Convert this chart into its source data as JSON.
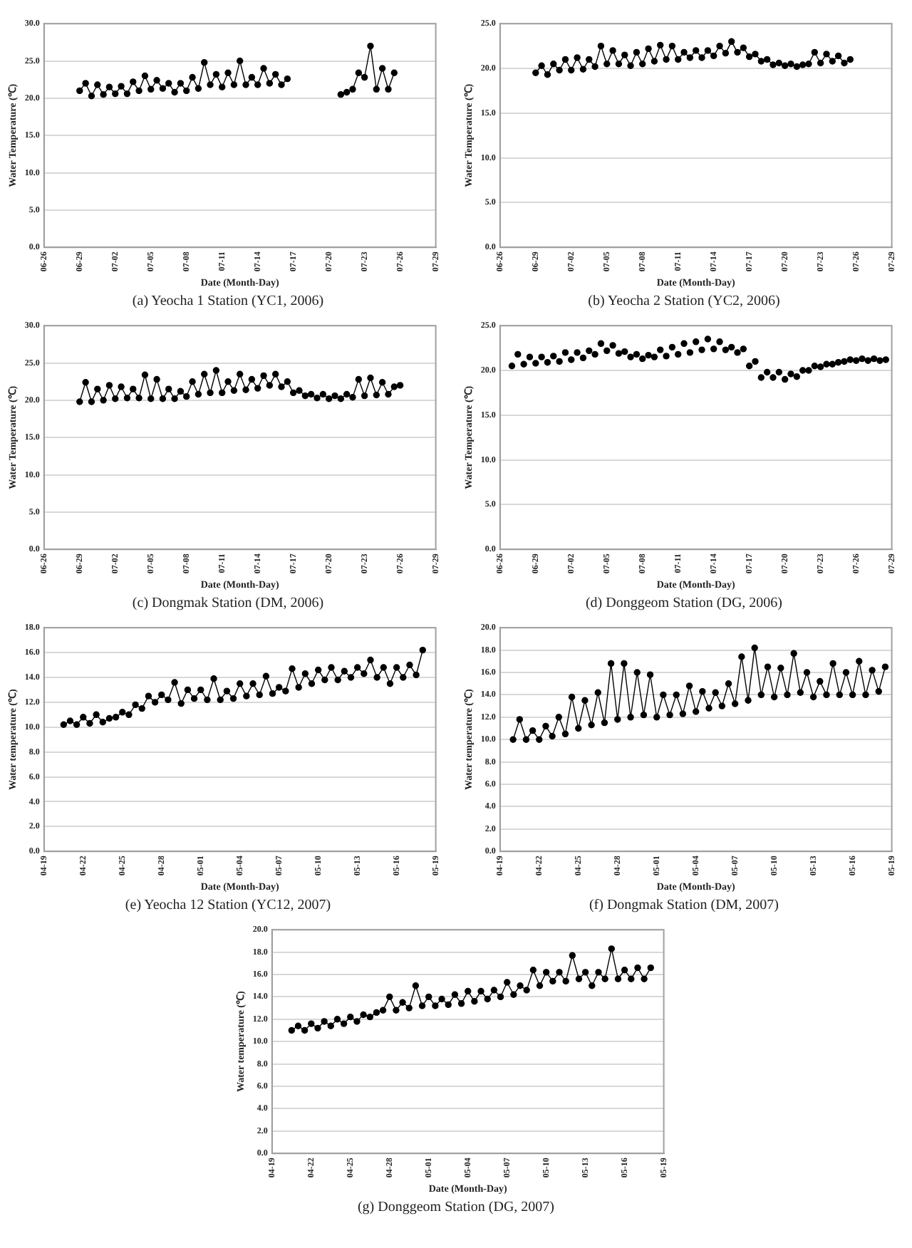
{
  "chart_data": [
    {
      "type": "line",
      "title": "(a) Yeocha 1 Station (YC1, 2006)",
      "xlabel": "Date (Month-Day)",
      "ylabel": "Water Temperature (℃)",
      "color": "#000000",
      "marker": "circle",
      "grid": "y",
      "xlim": [
        "2006-06-26",
        "2006-07-29"
      ],
      "xticks": [
        {
          "value": "2006-06-26",
          "label": "06-26"
        },
        {
          "value": "2006-06-29",
          "label": "06-29"
        },
        {
          "value": "2006-07-02",
          "label": "07-02"
        },
        {
          "value": "2006-07-05",
          "label": "07-05"
        },
        {
          "value": "2006-07-08",
          "label": "07-08"
        },
        {
          "value": "2006-07-11",
          "label": "07-11"
        },
        {
          "value": "2006-07-14",
          "label": "07-14"
        },
        {
          "value": "2006-07-17",
          "label": "07-17"
        },
        {
          "value": "2006-07-20",
          "label": "07-20"
        },
        {
          "value": "2006-07-23",
          "label": "07-23"
        },
        {
          "value": "2006-07-26",
          "label": "07-26"
        },
        {
          "value": "2006-07-29",
          "label": "07-29"
        }
      ],
      "ylim": [
        0,
        30
      ],
      "yticks": [
        {
          "value": 0,
          "label": "0.0"
        },
        {
          "value": 5,
          "label": "5.0"
        },
        {
          "value": 10,
          "label": "10.0"
        },
        {
          "value": 15,
          "label": "15.0"
        },
        {
          "value": 20,
          "label": "20.0"
        },
        {
          "value": 25,
          "label": "25.0"
        },
        {
          "value": 30,
          "label": "30.0"
        }
      ],
      "x": [
        "2006-06-29T00:00",
        "2006-06-29T12:00",
        "2006-06-30T00:00",
        "2006-06-30T12:00",
        "2006-07-01T00:00",
        "2006-07-01T12:00",
        "2006-07-02T00:00",
        "2006-07-02T12:00",
        "2006-07-03T00:00",
        "2006-07-03T12:00",
        "2006-07-04T00:00",
        "2006-07-04T12:00",
        "2006-07-05T00:00",
        "2006-07-05T12:00",
        "2006-07-06T00:00",
        "2006-07-06T12:00",
        "2006-07-07T00:00",
        "2006-07-07T12:00",
        "2006-07-08T00:00",
        "2006-07-08T12:00",
        "2006-07-09T00:00",
        "2006-07-09T12:00",
        "2006-07-10T00:00",
        "2006-07-10T12:00",
        "2006-07-11T00:00",
        "2006-07-11T12:00",
        "2006-07-12T00:00",
        "2006-07-12T12:00",
        "2006-07-13T00:00",
        "2006-07-13T12:00",
        "2006-07-14T00:00",
        "2006-07-14T12:00",
        "2006-07-15T00:00",
        "2006-07-15T12:00",
        "2006-07-16T00:00",
        "2006-07-16T12:00",
        "2006-07-18T00:00",
        "2006-07-21T00:00",
        "2006-07-21T12:00",
        "2006-07-22T00:00",
        "2006-07-22T12:00",
        "2006-07-23T00:00",
        "2006-07-23T12:00",
        "2006-07-24T00:00",
        "2006-07-24T12:00",
        "2006-07-25T00:00",
        "2006-07-25T12:00"
      ],
      "values": [
        21.0,
        22.0,
        20.3,
        21.8,
        20.5,
        21.5,
        20.6,
        21.6,
        20.6,
        22.2,
        21.0,
        23.0,
        21.2,
        22.4,
        21.3,
        22.0,
        20.8,
        22.0,
        21.0,
        22.8,
        21.3,
        24.8,
        21.8,
        23.2,
        21.5,
        23.4,
        21.8,
        25.0,
        21.8,
        22.8,
        21.8,
        24.0,
        22.0,
        23.2,
        21.8,
        22.6,
        null,
        20.5,
        20.8,
        21.2,
        23.4,
        22.8,
        27.0,
        21.2,
        24.0,
        21.2,
        23.4
      ]
    },
    {
      "type": "line",
      "title": "(b) Yeocha 2 Station (YC2, 2006)",
      "xlabel": "Date (Month-Day)",
      "ylabel": "Water Temperature (℃)",
      "color": "#000000",
      "marker": "circle",
      "grid": "y",
      "xlim": [
        "2006-06-26",
        "2006-07-29"
      ],
      "xticks": [
        {
          "value": "2006-06-26",
          "label": "06-26"
        },
        {
          "value": "2006-06-29",
          "label": "06-29"
        },
        {
          "value": "2006-07-02",
          "label": "07-02"
        },
        {
          "value": "2006-07-05",
          "label": "07-05"
        },
        {
          "value": "2006-07-08",
          "label": "07-08"
        },
        {
          "value": "2006-07-11",
          "label": "07-11"
        },
        {
          "value": "2006-07-14",
          "label": "07-14"
        },
        {
          "value": "2006-07-17",
          "label": "07-17"
        },
        {
          "value": "2006-07-20",
          "label": "07-20"
        },
        {
          "value": "2006-07-23",
          "label": "07-23"
        },
        {
          "value": "2006-07-26",
          "label": "07-26"
        },
        {
          "value": "2006-07-29",
          "label": "07-29"
        }
      ],
      "ylim": [
        0,
        25
      ],
      "yticks": [
        {
          "value": 0,
          "label": "0.0"
        },
        {
          "value": 5,
          "label": "5.0"
        },
        {
          "value": 10,
          "label": "10.0"
        },
        {
          "value": 15,
          "label": "15.0"
        },
        {
          "value": 20,
          "label": "20.0"
        },
        {
          "value": 25,
          "label": "25.0"
        }
      ],
      "x": [
        "2006-06-29T00:00",
        "2006-06-29T12:00",
        "2006-06-30T00:00",
        "2006-06-30T12:00",
        "2006-07-01T00:00",
        "2006-07-01T12:00",
        "2006-07-02T00:00",
        "2006-07-02T12:00",
        "2006-07-03T00:00",
        "2006-07-03T12:00",
        "2006-07-04T00:00",
        "2006-07-04T12:00",
        "2006-07-05T00:00",
        "2006-07-05T12:00",
        "2006-07-06T00:00",
        "2006-07-06T12:00",
        "2006-07-07T00:00",
        "2006-07-07T12:00",
        "2006-07-08T00:00",
        "2006-07-08T12:00",
        "2006-07-09T00:00",
        "2006-07-09T12:00",
        "2006-07-10T00:00",
        "2006-07-10T12:00",
        "2006-07-11T00:00",
        "2006-07-11T12:00",
        "2006-07-12T00:00",
        "2006-07-12T12:00",
        "2006-07-13T00:00",
        "2006-07-13T12:00",
        "2006-07-14T00:00",
        "2006-07-14T12:00",
        "2006-07-15T00:00",
        "2006-07-15T12:00",
        "2006-07-16T00:00",
        "2006-07-16T12:00",
        "2006-07-17T00:00",
        "2006-07-17T12:00",
        "2006-07-18T00:00",
        "2006-07-18T12:00",
        "2006-07-19T00:00",
        "2006-07-19T12:00",
        "2006-07-20T00:00",
        "2006-07-20T12:00",
        "2006-07-21T00:00",
        "2006-07-21T12:00",
        "2006-07-22T00:00",
        "2006-07-22T12:00",
        "2006-07-23T00:00",
        "2006-07-23T12:00",
        "2006-07-24T00:00",
        "2006-07-24T12:00",
        "2006-07-25T00:00",
        "2006-07-25T12:00"
      ],
      "values": [
        19.5,
        20.3,
        19.3,
        20.5,
        19.8,
        21.0,
        19.8,
        21.2,
        19.9,
        21.0,
        20.2,
        22.5,
        20.5,
        22.0,
        20.5,
        21.5,
        20.3,
        21.8,
        20.5,
        22.2,
        20.8,
        22.6,
        21.0,
        22.5,
        21.0,
        21.8,
        21.2,
        22.0,
        21.2,
        22.0,
        21.4,
        22.5,
        21.7,
        23.0,
        21.8,
        22.3,
        21.3,
        21.6,
        20.8,
        21.0,
        20.4,
        20.6,
        20.3,
        20.5,
        20.2,
        20.4,
        20.5,
        21.8,
        20.6,
        21.6,
        20.8,
        21.4,
        20.6,
        21.0
      ]
    },
    {
      "type": "line",
      "title": "(c) Dongmak Station (DM, 2006)",
      "xlabel": "Date (Month-Day)",
      "ylabel": "Water Temperature (℃)",
      "color": "#000000",
      "marker": "circle",
      "grid": "y",
      "xlim": [
        "2006-06-26",
        "2006-07-29"
      ],
      "xticks": [
        {
          "value": "2006-06-26",
          "label": "06-26"
        },
        {
          "value": "2006-06-29",
          "label": "06-29"
        },
        {
          "value": "2006-07-02",
          "label": "07-02"
        },
        {
          "value": "2006-07-05",
          "label": "07-05"
        },
        {
          "value": "2006-07-08",
          "label": "07-08"
        },
        {
          "value": "2006-07-11",
          "label": "07-11"
        },
        {
          "value": "2006-07-14",
          "label": "07-14"
        },
        {
          "value": "2006-07-17",
          "label": "07-17"
        },
        {
          "value": "2006-07-20",
          "label": "07-20"
        },
        {
          "value": "2006-07-23",
          "label": "07-23"
        },
        {
          "value": "2006-07-26",
          "label": "07-26"
        },
        {
          "value": "2006-07-29",
          "label": "07-29"
        }
      ],
      "ylim": [
        0,
        30
      ],
      "yticks": [
        {
          "value": 0,
          "label": "0.0"
        },
        {
          "value": 5,
          "label": "5.0"
        },
        {
          "value": 10,
          "label": "10.0"
        },
        {
          "value": 15,
          "label": "15.0"
        },
        {
          "value": 20,
          "label": "20.0"
        },
        {
          "value": 25,
          "label": "25.0"
        },
        {
          "value": 30,
          "label": "30.0"
        }
      ],
      "x": [
        "2006-06-29T00:00",
        "2006-06-29T12:00",
        "2006-06-30T00:00",
        "2006-06-30T12:00",
        "2006-07-01T00:00",
        "2006-07-01T12:00",
        "2006-07-02T00:00",
        "2006-07-02T12:00",
        "2006-07-03T00:00",
        "2006-07-03T12:00",
        "2006-07-04T00:00",
        "2006-07-04T12:00",
        "2006-07-05T00:00",
        "2006-07-05T12:00",
        "2006-07-06T00:00",
        "2006-07-06T12:00",
        "2006-07-07T00:00",
        "2006-07-07T12:00",
        "2006-07-08T00:00",
        "2006-07-08T12:00",
        "2006-07-09T00:00",
        "2006-07-09T12:00",
        "2006-07-10T00:00",
        "2006-07-10T12:00",
        "2006-07-11T00:00",
        "2006-07-11T12:00",
        "2006-07-12T00:00",
        "2006-07-12T12:00",
        "2006-07-13T00:00",
        "2006-07-13T12:00",
        "2006-07-14T00:00",
        "2006-07-14T12:00",
        "2006-07-15T00:00",
        "2006-07-15T12:00",
        "2006-07-16T00:00",
        "2006-07-16T12:00",
        "2006-07-17T00:00",
        "2006-07-17T12:00",
        "2006-07-18T00:00",
        "2006-07-18T12:00",
        "2006-07-19T00:00",
        "2006-07-19T12:00",
        "2006-07-20T00:00",
        "2006-07-20T12:00",
        "2006-07-21T00:00",
        "2006-07-21T12:00",
        "2006-07-22T00:00",
        "2006-07-22T12:00",
        "2006-07-23T00:00",
        "2006-07-23T12:00",
        "2006-07-24T00:00",
        "2006-07-24T12:00",
        "2006-07-25T00:00",
        "2006-07-25T12:00",
        "2006-07-26T00:00"
      ],
      "values": [
        19.8,
        22.4,
        19.8,
        21.5,
        20.0,
        22.0,
        20.2,
        21.8,
        20.3,
        21.5,
        20.3,
        23.4,
        20.2,
        22.8,
        20.2,
        21.5,
        20.2,
        21.2,
        20.5,
        22.5,
        20.8,
        23.5,
        21.0,
        24.0,
        21.0,
        22.5,
        21.3,
        23.5,
        21.4,
        22.8,
        21.6,
        23.3,
        22.0,
        23.5,
        21.8,
        22.5,
        21.0,
        21.3,
        20.6,
        20.8,
        20.3,
        20.8,
        20.2,
        20.6,
        20.2,
        20.8,
        20.4,
        22.8,
        20.6,
        23.0,
        20.7,
        22.4,
        20.8,
        21.8,
        22.0
      ]
    },
    {
      "type": "scatter",
      "title": "(d) Donggeom Station (DG, 2006)",
      "xlabel": "Date (Month-Day)",
      "ylabel": "Water Temperature (℃)",
      "color": "#000000",
      "marker": "circle",
      "grid": "y",
      "xlim": [
        "2006-06-26",
        "2006-07-29"
      ],
      "xticks": [
        {
          "value": "2006-06-26",
          "label": "06-26"
        },
        {
          "value": "2006-06-29",
          "label": "06-29"
        },
        {
          "value": "2006-07-02",
          "label": "07-02"
        },
        {
          "value": "2006-07-05",
          "label": "07-05"
        },
        {
          "value": "2006-07-08",
          "label": "07-08"
        },
        {
          "value": "2006-07-11",
          "label": "07-11"
        },
        {
          "value": "2006-07-14",
          "label": "07-14"
        },
        {
          "value": "2006-07-17",
          "label": "07-17"
        },
        {
          "value": "2006-07-20",
          "label": "07-20"
        },
        {
          "value": "2006-07-23",
          "label": "07-23"
        },
        {
          "value": "2006-07-26",
          "label": "07-26"
        },
        {
          "value": "2006-07-29",
          "label": "07-29"
        }
      ],
      "ylim": [
        0,
        25
      ],
      "yticks": [
        {
          "value": 0,
          "label": "0.0"
        },
        {
          "value": 5,
          "label": "5.0"
        },
        {
          "value": 10,
          "label": "10.0"
        },
        {
          "value": 15,
          "label": "15.0"
        },
        {
          "value": 20,
          "label": "20.0"
        },
        {
          "value": 25,
          "label": "25.0"
        }
      ],
      "x": [
        "2006-06-27T00:00",
        "2006-06-27T12:00",
        "2006-06-28T00:00",
        "2006-06-28T12:00",
        "2006-06-29T00:00",
        "2006-06-29T12:00",
        "2006-06-30T00:00",
        "2006-06-30T12:00",
        "2006-07-01T00:00",
        "2006-07-01T12:00",
        "2006-07-02T00:00",
        "2006-07-02T12:00",
        "2006-07-03T00:00",
        "2006-07-03T12:00",
        "2006-07-04T00:00",
        "2006-07-04T12:00",
        "2006-07-05T00:00",
        "2006-07-05T12:00",
        "2006-07-06T00:00",
        "2006-07-06T12:00",
        "2006-07-07T00:00",
        "2006-07-07T12:00",
        "2006-07-08T00:00",
        "2006-07-08T12:00",
        "2006-07-09T00:00",
        "2006-07-09T12:00",
        "2006-07-10T00:00",
        "2006-07-10T12:00",
        "2006-07-11T00:00",
        "2006-07-11T12:00",
        "2006-07-12T00:00",
        "2006-07-12T12:00",
        "2006-07-13T00:00",
        "2006-07-13T12:00",
        "2006-07-14T00:00",
        "2006-07-14T12:00",
        "2006-07-15T00:00",
        "2006-07-15T12:00",
        "2006-07-16T00:00",
        "2006-07-16T12:00",
        "2006-07-17T00:00",
        "2006-07-17T12:00",
        "2006-07-18T00:00",
        "2006-07-18T12:00",
        "2006-07-19T00:00",
        "2006-07-19T12:00",
        "2006-07-20T00:00",
        "2006-07-20T12:00",
        "2006-07-21T00:00",
        "2006-07-21T12:00",
        "2006-07-22T00:00",
        "2006-07-22T12:00",
        "2006-07-23T00:00",
        "2006-07-23T12:00",
        "2006-07-24T00:00",
        "2006-07-24T12:00",
        "2006-07-25T00:00",
        "2006-07-25T12:00",
        "2006-07-26T00:00",
        "2006-07-26T12:00",
        "2006-07-27T00:00",
        "2006-07-27T12:00",
        "2006-07-28T00:00",
        "2006-07-28T12:00"
      ],
      "values": [
        20.5,
        21.8,
        20.7,
        21.5,
        20.8,
        21.5,
        20.9,
        21.6,
        21.0,
        22.0,
        21.2,
        22.0,
        21.4,
        22.2,
        21.8,
        23.0,
        22.2,
        22.8,
        21.9,
        22.1,
        21.5,
        21.8,
        21.3,
        21.7,
        21.5,
        22.3,
        21.6,
        22.6,
        21.8,
        23.0,
        22.0,
        23.2,
        22.3,
        23.5,
        22.4,
        23.2,
        22.3,
        22.6,
        22.0,
        22.4,
        20.5,
        21.0,
        19.2,
        19.8,
        19.2,
        19.8,
        19.0,
        19.6,
        19.3,
        20.0,
        20.0,
        20.5,
        20.4,
        20.7,
        20.7,
        20.9,
        21.0,
        21.2,
        21.1,
        21.3,
        21.1,
        21.3,
        21.1,
        21.2
      ]
    },
    {
      "type": "line",
      "title": "(e) Yeocha 12 Station (YC12, 2007)",
      "xlabel": "Date (Month-Day)",
      "ylabel": "Water temperature (℃)",
      "color": "#000000",
      "marker": "circle",
      "grid": "y",
      "xlim": [
        "2007-04-19",
        "2007-05-19"
      ],
      "xticks": [
        {
          "value": "2007-04-19",
          "label": "04-19"
        },
        {
          "value": "2007-04-22",
          "label": "04-22"
        },
        {
          "value": "2007-04-25",
          "label": "04-25"
        },
        {
          "value": "2007-04-28",
          "label": "04-28"
        },
        {
          "value": "2007-05-01",
          "label": "05-01"
        },
        {
          "value": "2007-05-04",
          "label": "05-04"
        },
        {
          "value": "2007-05-07",
          "label": "05-07"
        },
        {
          "value": "2007-05-10",
          "label": "05-10"
        },
        {
          "value": "2007-05-13",
          "label": "05-13"
        },
        {
          "value": "2007-05-16",
          "label": "05-16"
        },
        {
          "value": "2007-05-19",
          "label": "05-19"
        }
      ],
      "ylim": [
        0,
        18
      ],
      "yticks": [
        {
          "value": 0,
          "label": "0.0"
        },
        {
          "value": 2,
          "label": "2.0"
        },
        {
          "value": 4,
          "label": "4.0"
        },
        {
          "value": 6,
          "label": "6.0"
        },
        {
          "value": 8,
          "label": "8.0"
        },
        {
          "value": 10,
          "label": "10.0"
        },
        {
          "value": 12,
          "label": "12.0"
        },
        {
          "value": 14,
          "label": "14.0"
        },
        {
          "value": 16,
          "label": "16.0"
        },
        {
          "value": 18,
          "label": "18.0"
        }
      ],
      "x": [
        "2007-04-20T12:00",
        "2007-04-21T00:00",
        "2007-04-21T12:00",
        "2007-04-22T00:00",
        "2007-04-22T12:00",
        "2007-04-23T00:00",
        "2007-04-23T12:00",
        "2007-04-24T00:00",
        "2007-04-24T12:00",
        "2007-04-25T00:00",
        "2007-04-25T12:00",
        "2007-04-26T00:00",
        "2007-04-26T12:00",
        "2007-04-27T00:00",
        "2007-04-27T12:00",
        "2007-04-28T00:00",
        "2007-04-28T12:00",
        "2007-04-29T00:00",
        "2007-04-29T12:00",
        "2007-04-30T00:00",
        "2007-04-30T12:00",
        "2007-05-01T00:00",
        "2007-05-01T12:00",
        "2007-05-02T00:00",
        "2007-05-02T12:00",
        "2007-05-03T00:00",
        "2007-05-03T12:00",
        "2007-05-04T00:00",
        "2007-05-04T12:00",
        "2007-05-05T00:00",
        "2007-05-05T12:00",
        "2007-05-06T00:00",
        "2007-05-06T12:00",
        "2007-05-07T00:00",
        "2007-05-07T12:00",
        "2007-05-08T00:00",
        "2007-05-08T12:00",
        "2007-05-09T00:00",
        "2007-05-09T12:00",
        "2007-05-10T00:00",
        "2007-05-10T12:00",
        "2007-05-11T00:00",
        "2007-05-11T12:00",
        "2007-05-12T00:00",
        "2007-05-12T12:00",
        "2007-05-13T00:00",
        "2007-05-13T12:00",
        "2007-05-14T00:00",
        "2007-05-14T12:00",
        "2007-05-15T00:00",
        "2007-05-15T12:00",
        "2007-05-16T00:00",
        "2007-05-16T12:00",
        "2007-05-17T00:00",
        "2007-05-17T12:00",
        "2007-05-18T00:00"
      ],
      "values": [
        10.2,
        10.5,
        10.2,
        10.8,
        10.3,
        11.0,
        10.4,
        10.7,
        10.8,
        11.2,
        11.0,
        11.8,
        11.5,
        12.5,
        12.0,
        12.6,
        12.2,
        13.6,
        11.9,
        13.0,
        12.3,
        13.0,
        12.2,
        13.9,
        12.2,
        12.9,
        12.3,
        13.5,
        12.5,
        13.5,
        12.6,
        14.1,
        12.7,
        13.2,
        12.9,
        14.7,
        13.2,
        14.3,
        13.5,
        14.6,
        13.8,
        14.8,
        13.8,
        14.5,
        14.0,
        14.8,
        14.3,
        15.4,
        14.0,
        14.8,
        13.5,
        14.8,
        14.0,
        15.0,
        14.2,
        16.2
      ]
    },
    {
      "type": "line",
      "title": "(f) Dongmak Station (DM, 2007)",
      "xlabel": "Date (Month-Day)",
      "ylabel": "Water temperature (℃)",
      "color": "#000000",
      "marker": "circle",
      "grid": "y",
      "xlim": [
        "2007-04-19",
        "2007-05-19"
      ],
      "xticks": [
        {
          "value": "2007-04-19",
          "label": "04-19"
        },
        {
          "value": "2007-04-22",
          "label": "04-22"
        },
        {
          "value": "2007-04-25",
          "label": "04-25"
        },
        {
          "value": "2007-04-28",
          "label": "04-28"
        },
        {
          "value": "2007-05-01",
          "label": "05-01"
        },
        {
          "value": "2007-05-04",
          "label": "05-04"
        },
        {
          "value": "2007-05-07",
          "label": "05-07"
        },
        {
          "value": "2007-05-10",
          "label": "05-10"
        },
        {
          "value": "2007-05-13",
          "label": "05-13"
        },
        {
          "value": "2007-05-16",
          "label": "05-16"
        },
        {
          "value": "2007-05-19",
          "label": "05-19"
        }
      ],
      "ylim": [
        0,
        20
      ],
      "yticks": [
        {
          "value": 0,
          "label": "0.0"
        },
        {
          "value": 2,
          "label": "2.0"
        },
        {
          "value": 4,
          "label": "4.0"
        },
        {
          "value": 6,
          "label": "6.0"
        },
        {
          "value": 8,
          "label": "8.0"
        },
        {
          "value": 10,
          "label": "10.0"
        },
        {
          "value": 12,
          "label": "12.0"
        },
        {
          "value": 14,
          "label": "14.0"
        },
        {
          "value": 16,
          "label": "16.0"
        },
        {
          "value": 18,
          "label": "18.0"
        },
        {
          "value": 20,
          "label": "20.0"
        }
      ],
      "x": [
        "2007-04-20T00:00",
        "2007-04-20T12:00",
        "2007-04-21T00:00",
        "2007-04-21T12:00",
        "2007-04-22T00:00",
        "2007-04-22T12:00",
        "2007-04-23T00:00",
        "2007-04-23T12:00",
        "2007-04-24T00:00",
        "2007-04-24T12:00",
        "2007-04-25T00:00",
        "2007-04-25T12:00",
        "2007-04-26T00:00",
        "2007-04-26T12:00",
        "2007-04-27T00:00",
        "2007-04-27T12:00",
        "2007-04-28T00:00",
        "2007-04-28T12:00",
        "2007-04-29T00:00",
        "2007-04-29T12:00",
        "2007-04-30T00:00",
        "2007-04-30T12:00",
        "2007-05-01T00:00",
        "2007-05-01T12:00",
        "2007-05-02T00:00",
        "2007-05-02T12:00",
        "2007-05-03T00:00",
        "2007-05-03T12:00",
        "2007-05-04T00:00",
        "2007-05-04T12:00",
        "2007-05-05T00:00",
        "2007-05-05T12:00",
        "2007-05-06T00:00",
        "2007-05-06T12:00",
        "2007-05-07T00:00",
        "2007-05-07T12:00",
        "2007-05-08T00:00",
        "2007-05-08T12:00",
        "2007-05-09T00:00",
        "2007-05-09T12:00",
        "2007-05-10T00:00",
        "2007-05-10T12:00",
        "2007-05-11T00:00",
        "2007-05-11T12:00",
        "2007-05-12T00:00",
        "2007-05-12T12:00",
        "2007-05-13T00:00",
        "2007-05-13T12:00",
        "2007-05-14T00:00",
        "2007-05-14T12:00",
        "2007-05-15T00:00",
        "2007-05-15T12:00",
        "2007-05-16T00:00",
        "2007-05-16T12:00",
        "2007-05-17T00:00",
        "2007-05-17T12:00",
        "2007-05-18T00:00",
        "2007-05-18T12:00"
      ],
      "values": [
        10.0,
        11.8,
        10.0,
        10.8,
        10.0,
        11.2,
        10.3,
        12.0,
        10.5,
        13.8,
        11.0,
        13.5,
        11.3,
        14.2,
        11.5,
        16.8,
        11.8,
        16.8,
        12.0,
        16.0,
        12.2,
        15.8,
        12.0,
        14.0,
        12.2,
        14.0,
        12.3,
        14.8,
        12.5,
        14.3,
        12.8,
        14.2,
        13.0,
        15.0,
        13.2,
        17.4,
        13.5,
        18.2,
        14.0,
        16.5,
        13.8,
        16.4,
        14.0,
        17.7,
        14.2,
        16.0,
        13.8,
        15.2,
        14.0,
        16.8,
        14.0,
        16.0,
        14.0,
        17.0,
        14.0,
        16.2,
        14.3,
        16.5
      ]
    },
    {
      "type": "line",
      "title": "(g) Donggeom Station (DG, 2007)",
      "xlabel": "Date (Month-Day)",
      "ylabel": "Water temperature (℃)",
      "color": "#000000",
      "marker": "circle",
      "grid": "y",
      "xlim": [
        "2007-04-19",
        "2007-05-19"
      ],
      "xticks": [
        {
          "value": "2007-04-19",
          "label": "04-19"
        },
        {
          "value": "2007-04-22",
          "label": "04-22"
        },
        {
          "value": "2007-04-25",
          "label": "04-25"
        },
        {
          "value": "2007-04-28",
          "label": "04-28"
        },
        {
          "value": "2007-05-01",
          "label": "05-01"
        },
        {
          "value": "2007-05-04",
          "label": "05-04"
        },
        {
          "value": "2007-05-07",
          "label": "05-07"
        },
        {
          "value": "2007-05-10",
          "label": "05-10"
        },
        {
          "value": "2007-05-13",
          "label": "05-13"
        },
        {
          "value": "2007-05-16",
          "label": "05-16"
        },
        {
          "value": "2007-05-19",
          "label": "05-19"
        }
      ],
      "ylim": [
        0,
        20
      ],
      "yticks": [
        {
          "value": 0,
          "label": "0.0"
        },
        {
          "value": 2,
          "label": "2.0"
        },
        {
          "value": 4,
          "label": "4.0"
        },
        {
          "value": 6,
          "label": "6.0"
        },
        {
          "value": 8,
          "label": "8.0"
        },
        {
          "value": 10,
          "label": "10.0"
        },
        {
          "value": 12,
          "label": "12.0"
        },
        {
          "value": 14,
          "label": "14.0"
        },
        {
          "value": 16,
          "label": "16.0"
        },
        {
          "value": 18,
          "label": "18.0"
        },
        {
          "value": 20,
          "label": "20.0"
        }
      ],
      "x": [
        "2007-04-20T12:00",
        "2007-04-21T00:00",
        "2007-04-21T12:00",
        "2007-04-22T00:00",
        "2007-04-22T12:00",
        "2007-04-23T00:00",
        "2007-04-23T12:00",
        "2007-04-24T00:00",
        "2007-04-24T12:00",
        "2007-04-25T00:00",
        "2007-04-25T12:00",
        "2007-04-26T00:00",
        "2007-04-26T12:00",
        "2007-04-27T00:00",
        "2007-04-27T12:00",
        "2007-04-28T00:00",
        "2007-04-28T12:00",
        "2007-04-29T00:00",
        "2007-04-29T12:00",
        "2007-04-30T00:00",
        "2007-04-30T12:00",
        "2007-05-01T00:00",
        "2007-05-01T12:00",
        "2007-05-02T00:00",
        "2007-05-02T12:00",
        "2007-05-03T00:00",
        "2007-05-03T12:00",
        "2007-05-04T00:00",
        "2007-05-04T12:00",
        "2007-05-05T00:00",
        "2007-05-05T12:00",
        "2007-05-06T00:00",
        "2007-05-06T12:00",
        "2007-05-07T00:00",
        "2007-05-07T12:00",
        "2007-05-08T00:00",
        "2007-05-08T12:00",
        "2007-05-09T00:00",
        "2007-05-09T12:00",
        "2007-05-10T00:00",
        "2007-05-10T12:00",
        "2007-05-11T00:00",
        "2007-05-11T12:00",
        "2007-05-12T00:00",
        "2007-05-12T12:00",
        "2007-05-13T00:00",
        "2007-05-13T12:00",
        "2007-05-14T00:00",
        "2007-05-14T12:00",
        "2007-05-15T00:00",
        "2007-05-15T12:00",
        "2007-05-16T00:00",
        "2007-05-16T12:00",
        "2007-05-17T00:00",
        "2007-05-17T12:00",
        "2007-05-18T00:00"
      ],
      "values": [
        11.0,
        11.4,
        11.0,
        11.6,
        11.2,
        11.8,
        11.4,
        12.0,
        11.6,
        12.2,
        11.8,
        12.4,
        12.2,
        12.6,
        12.8,
        14.0,
        12.8,
        13.5,
        13.0,
        15.0,
        13.2,
        14.0,
        13.2,
        13.8,
        13.3,
        14.2,
        13.4,
        14.5,
        13.6,
        14.5,
        13.8,
        14.6,
        14.0,
        15.3,
        14.2,
        15.0,
        14.6,
        16.4,
        15.0,
        16.2,
        15.4,
        16.2,
        15.4,
        17.7,
        15.6,
        16.2,
        15.0,
        16.2,
        15.6,
        18.3,
        15.6,
        16.4,
        15.6,
        16.6,
        15.6,
        16.6
      ]
    }
  ]
}
